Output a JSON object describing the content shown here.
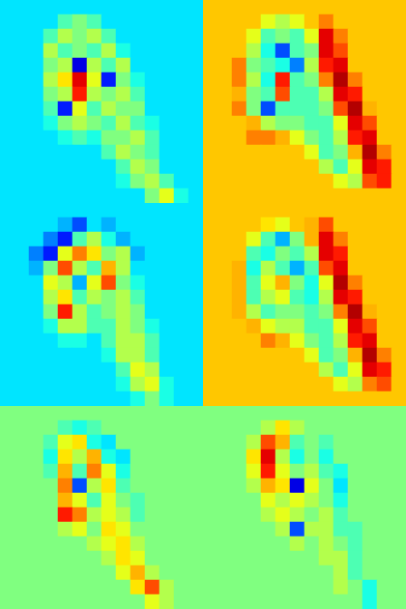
{
  "chart_data": [
    {
      "type": "heatmap",
      "xlim": [
        0,
        14
      ],
      "ylim": [
        14,
        0
      ],
      "tick_labels": false,
      "color_range": [
        0,
        100
      ],
      "cells": [
        [
          35,
          35,
          35,
          35,
          35,
          35,
          35,
          35,
          35,
          35,
          35,
          35,
          35,
          35
        ],
        [
          35,
          35,
          35,
          35,
          45,
          50,
          45,
          35,
          35,
          35,
          35,
          35,
          35,
          35
        ],
        [
          35,
          35,
          35,
          45,
          55,
          50,
          55,
          45,
          35,
          35,
          35,
          35,
          35,
          35
        ],
        [
          35,
          35,
          35,
          55,
          45,
          50,
          45,
          55,
          40,
          35,
          35,
          35,
          35,
          35
        ],
        [
          35,
          35,
          35,
          50,
          55,
          10,
          55,
          45,
          55,
          35,
          35,
          35,
          35,
          35
        ],
        [
          35,
          35,
          35,
          55,
          65,
          90,
          60,
          15,
          50,
          40,
          35,
          35,
          35,
          35
        ],
        [
          35,
          35,
          35,
          50,
          55,
          85,
          55,
          50,
          55,
          45,
          35,
          35,
          35,
          35
        ],
        [
          35,
          35,
          35,
          45,
          15,
          60,
          45,
          55,
          50,
          50,
          35,
          35,
          35,
          35
        ],
        [
          35,
          35,
          35,
          40,
          50,
          55,
          50,
          45,
          55,
          45,
          40,
          35,
          35,
          35
        ],
        [
          35,
          35,
          35,
          35,
          40,
          45,
          40,
          50,
          50,
          55,
          45,
          35,
          35,
          35
        ],
        [
          35,
          35,
          35,
          35,
          35,
          35,
          35,
          45,
          55,
          50,
          45,
          35,
          35,
          35
        ],
        [
          35,
          35,
          35,
          35,
          35,
          35,
          35,
          35,
          45,
          55,
          50,
          35,
          35,
          35
        ],
        [
          35,
          35,
          35,
          35,
          35,
          35,
          35,
          35,
          40,
          50,
          55,
          45,
          35,
          35
        ],
        [
          35,
          35,
          35,
          35,
          35,
          35,
          35,
          35,
          35,
          35,
          50,
          60,
          40,
          35
        ]
      ]
    },
    {
      "type": "heatmap",
      "xlim": [
        0,
        14
      ],
      "ylim": [
        14,
        0
      ],
      "tick_labels": false,
      "color_range": [
        0,
        100
      ],
      "cells": [
        [
          68,
          68,
          68,
          68,
          68,
          68,
          68,
          68,
          68,
          68,
          68,
          68,
          68,
          68
        ],
        [
          68,
          68,
          68,
          68,
          60,
          55,
          60,
          68,
          75,
          68,
          68,
          68,
          68,
          68
        ],
        [
          68,
          68,
          68,
          60,
          45,
          50,
          45,
          60,
          90,
          75,
          68,
          68,
          68,
          68
        ],
        [
          68,
          68,
          68,
          55,
          40,
          20,
          45,
          50,
          90,
          80,
          68,
          68,
          68,
          68
        ],
        [
          68,
          68,
          75,
          50,
          45,
          40,
          25,
          55,
          85,
          90,
          68,
          68,
          68,
          68
        ],
        [
          68,
          68,
          75,
          55,
          40,
          85,
          45,
          50,
          75,
          95,
          75,
          68,
          68,
          68
        ],
        [
          68,
          68,
          70,
          50,
          45,
          80,
          45,
          45,
          55,
          90,
          85,
          68,
          68,
          68
        ],
        [
          68,
          68,
          75,
          50,
          20,
          45,
          45,
          45,
          50,
          80,
          95,
          70,
          68,
          68
        ],
        [
          68,
          68,
          68,
          70,
          55,
          50,
          50,
          45,
          45,
          60,
          90,
          80,
          68,
          68
        ],
        [
          68,
          68,
          68,
          75,
          75,
          70,
          60,
          50,
          45,
          55,
          85,
          90,
          68,
          68
        ],
        [
          68,
          68,
          68,
          68,
          68,
          68,
          68,
          60,
          45,
          50,
          70,
          95,
          75,
          68
        ],
        [
          68,
          68,
          68,
          68,
          68,
          68,
          68,
          68,
          55,
          45,
          60,
          90,
          85,
          68
        ],
        [
          68,
          68,
          68,
          68,
          68,
          68,
          68,
          68,
          68,
          60,
          55,
          80,
          85,
          68
        ],
        [
          68,
          68,
          68,
          68,
          68,
          68,
          68,
          68,
          68,
          68,
          68,
          68,
          68,
          68
        ]
      ]
    },
    {
      "type": "heatmap",
      "xlim": [
        0,
        14
      ],
      "ylim": [
        14,
        0
      ],
      "tick_labels": false,
      "color_range": [
        0,
        100
      ],
      "cells": [
        [
          35,
          35,
          35,
          35,
          35,
          35,
          35,
          35,
          35,
          35,
          35,
          35,
          35,
          35
        ],
        [
          35,
          35,
          35,
          35,
          30,
          20,
          35,
          30,
          35,
          35,
          35,
          35,
          35,
          35
        ],
        [
          35,
          35,
          35,
          25,
          15,
          45,
          55,
          40,
          30,
          35,
          35,
          35,
          35,
          35
        ],
        [
          35,
          35,
          25,
          15,
          60,
          75,
          65,
          50,
          55,
          30,
          35,
          35,
          35,
          35
        ],
        [
          35,
          35,
          30,
          50,
          80,
          55,
          45,
          70,
          55,
          35,
          35,
          35,
          35,
          35
        ],
        [
          35,
          35,
          35,
          60,
          55,
          30,
          60,
          80,
          50,
          40,
          35,
          35,
          35,
          35
        ],
        [
          35,
          35,
          35,
          55,
          65,
          45,
          55,
          50,
          55,
          45,
          35,
          35,
          35,
          35
        ],
        [
          35,
          35,
          35,
          50,
          85,
          55,
          45,
          50,
          55,
          50,
          35,
          35,
          35,
          35
        ],
        [
          35,
          35,
          35,
          40,
          55,
          55,
          45,
          45,
          55,
          50,
          40,
          35,
          35,
          35
        ],
        [
          35,
          35,
          35,
          35,
          40,
          40,
          35,
          45,
          55,
          55,
          45,
          35,
          35,
          35
        ],
        [
          35,
          35,
          35,
          35,
          35,
          35,
          35,
          40,
          55,
          55,
          45,
          35,
          35,
          35
        ],
        [
          35,
          35,
          35,
          35,
          35,
          35,
          35,
          35,
          45,
          60,
          55,
          35,
          35,
          35
        ],
        [
          35,
          35,
          35,
          35,
          35,
          35,
          35,
          35,
          40,
          55,
          60,
          40,
          35,
          35
        ],
        [
          35,
          35,
          35,
          35,
          35,
          35,
          35,
          35,
          35,
          40,
          50,
          40,
          35,
          35
        ]
      ]
    },
    {
      "type": "heatmap",
      "xlim": [
        0,
        14
      ],
      "ylim": [
        14,
        0
      ],
      "tick_labels": false,
      "color_range": [
        0,
        100
      ],
      "cells": [
        [
          68,
          68,
          68,
          68,
          68,
          68,
          68,
          68,
          68,
          68,
          68,
          68,
          68,
          68
        ],
        [
          68,
          68,
          68,
          68,
          65,
          60,
          68,
          70,
          80,
          68,
          68,
          68,
          68,
          68
        ],
        [
          68,
          68,
          68,
          60,
          45,
          30,
          50,
          70,
          90,
          75,
          68,
          68,
          68,
          68
        ],
        [
          68,
          68,
          68,
          45,
          40,
          50,
          45,
          55,
          90,
          85,
          68,
          68,
          68,
          68
        ],
        [
          68,
          68,
          70,
          40,
          55,
          45,
          30,
          45,
          80,
          90,
          68,
          68,
          68,
          68
        ],
        [
          68,
          68,
          70,
          45,
          60,
          70,
          50,
          40,
          60,
          95,
          75,
          68,
          68,
          68
        ],
        [
          68,
          68,
          70,
          45,
          55,
          60,
          45,
          40,
          55,
          90,
          85,
          68,
          68,
          68
        ],
        [
          68,
          68,
          70,
          55,
          45,
          50,
          50,
          45,
          50,
          75,
          95,
          70,
          68,
          68
        ],
        [
          68,
          68,
          68,
          70,
          60,
          55,
          55,
          45,
          45,
          60,
          90,
          80,
          68,
          68
        ],
        [
          68,
          68,
          68,
          68,
          75,
          70,
          60,
          50,
          45,
          55,
          85,
          90,
          68,
          68
        ],
        [
          68,
          68,
          68,
          68,
          68,
          68,
          68,
          60,
          45,
          50,
          70,
          95,
          75,
          68
        ],
        [
          68,
          68,
          68,
          68,
          68,
          68,
          68,
          68,
          55,
          45,
          60,
          90,
          85,
          68
        ],
        [
          68,
          68,
          68,
          68,
          68,
          68,
          68,
          68,
          68,
          60,
          55,
          75,
          80,
          68
        ],
        [
          68,
          68,
          68,
          68,
          68,
          68,
          68,
          68,
          68,
          68,
          68,
          68,
          68,
          68
        ]
      ]
    },
    {
      "type": "heatmap",
      "xlim": [
        0,
        14
      ],
      "ylim": [
        14,
        0
      ],
      "tick_labels": false,
      "color_range": [
        0,
        100
      ],
      "cells": [
        [
          50,
          50,
          50,
          50,
          50,
          50,
          50,
          50,
          50,
          50,
          50,
          50,
          50,
          50
        ],
        [
          50,
          50,
          50,
          50,
          45,
          40,
          45,
          50,
          50,
          50,
          50,
          50,
          50,
          50
        ],
        [
          50,
          50,
          50,
          45,
          60,
          65,
          40,
          35,
          50,
          50,
          50,
          50,
          50,
          50
        ],
        [
          50,
          50,
          50,
          40,
          65,
          55,
          70,
          40,
          35,
          50,
          50,
          50,
          50,
          50
        ],
        [
          50,
          50,
          50,
          45,
          70,
          45,
          75,
          60,
          40,
          50,
          50,
          50,
          50,
          50
        ],
        [
          50,
          50,
          50,
          50,
          75,
          20,
          55,
          65,
          45,
          50,
          50,
          50,
          50,
          50
        ],
        [
          50,
          50,
          50,
          50,
          70,
          60,
          45,
          60,
          50,
          45,
          50,
          50,
          50,
          50
        ],
        [
          50,
          50,
          50,
          50,
          85,
          75,
          55,
          60,
          55,
          45,
          50,
          50,
          50,
          50
        ],
        [
          50,
          50,
          50,
          50,
          55,
          60,
          50,
          65,
          60,
          50,
          50,
          50,
          50,
          50
        ],
        [
          50,
          50,
          50,
          50,
          50,
          50,
          55,
          60,
          65,
          55,
          50,
          50,
          50,
          50
        ],
        [
          50,
          50,
          50,
          50,
          50,
          50,
          50,
          55,
          65,
          60,
          50,
          50,
          50,
          50
        ],
        [
          50,
          50,
          50,
          50,
          50,
          50,
          50,
          50,
          60,
          70,
          55,
          50,
          50,
          50
        ],
        [
          50,
          50,
          50,
          50,
          50,
          50,
          50,
          50,
          50,
          65,
          80,
          55,
          50,
          50
        ],
        [
          50,
          50,
          50,
          50,
          50,
          50,
          50,
          50,
          50,
          50,
          60,
          55,
          50,
          50
        ]
      ]
    },
    {
      "type": "heatmap",
      "xlim": [
        0,
        14
      ],
      "ylim": [
        14,
        0
      ],
      "tick_labels": false,
      "color_range": [
        0,
        100
      ],
      "cells": [
        [
          50,
          50,
          50,
          50,
          50,
          50,
          50,
          50,
          50,
          50,
          50,
          50,
          50,
          50
        ],
        [
          50,
          50,
          50,
          50,
          55,
          65,
          55,
          50,
          50,
          50,
          50,
          50,
          50,
          50
        ],
        [
          50,
          50,
          50,
          55,
          80,
          70,
          45,
          50,
          45,
          50,
          50,
          50,
          50,
          50
        ],
        [
          50,
          50,
          50,
          65,
          90,
          55,
          40,
          50,
          40,
          50,
          50,
          50,
          50,
          50
        ],
        [
          50,
          50,
          50,
          60,
          85,
          60,
          50,
          55,
          45,
          40,
          50,
          50,
          50,
          50
        ],
        [
          50,
          50,
          50,
          55,
          70,
          65,
          10,
          60,
          50,
          35,
          50,
          50,
          50,
          50
        ],
        [
          50,
          50,
          50,
          50,
          60,
          55,
          60,
          55,
          50,
          40,
          50,
          50,
          50,
          50
        ],
        [
          50,
          50,
          50,
          50,
          55,
          60,
          55,
          50,
          55,
          45,
          50,
          50,
          50,
          50
        ],
        [
          50,
          50,
          50,
          50,
          50,
          55,
          20,
          55,
          55,
          45,
          45,
          50,
          50,
          50
        ],
        [
          50,
          50,
          50,
          50,
          50,
          50,
          55,
          50,
          55,
          50,
          45,
          50,
          50,
          50
        ],
        [
          50,
          50,
          50,
          50,
          50,
          50,
          50,
          50,
          55,
          55,
          45,
          50,
          50,
          50
        ],
        [
          50,
          50,
          50,
          50,
          50,
          50,
          50,
          50,
          50,
          55,
          45,
          50,
          50,
          50
        ],
        [
          50,
          50,
          50,
          50,
          50,
          50,
          50,
          50,
          50,
          55,
          50,
          40,
          50,
          50
        ],
        [
          50,
          50,
          50,
          50,
          50,
          50,
          50,
          50,
          50,
          50,
          50,
          40,
          50,
          50
        ]
      ]
    }
  ]
}
